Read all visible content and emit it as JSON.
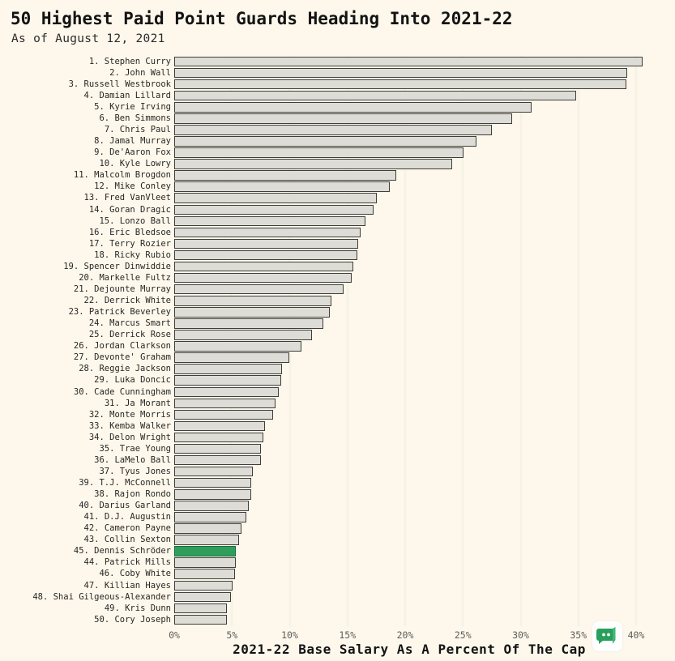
{
  "header": {
    "title": "50 Highest Paid Point Guards Heading Into 2021-22",
    "subtitle": "As of August 12, 2021"
  },
  "watermark": {
    "icon": "chat-bubble-icon",
    "bubble_color": "#28a05c",
    "fold_color": "#45b477",
    "background": "#ffffff"
  },
  "style": {
    "background": "#fdf8eb",
    "bar_fill": "#dddcd7",
    "bar_border": "#3f3e39",
    "highlight_fill": "#2f9e5b",
    "highlight_border": "#1b6e3d",
    "gridline_color": "#f5f2e6"
  },
  "chart_data": {
    "type": "bar",
    "orientation": "horizontal",
    "title": "50 Highest Paid Point Guards Heading Into 2021-22",
    "subtitle": "As of August 12, 2021",
    "xlabel": "2021-22 Base Salary As A Percent Of The Cap",
    "x_ticks": [
      "0%",
      "5%",
      "10%",
      "15%",
      "20%",
      "25%",
      "30%",
      "35%",
      "40%"
    ],
    "x_tick_values": [
      0,
      5,
      10,
      15,
      20,
      25,
      30,
      35,
      40
    ],
    "xlim": [
      0,
      43.3
    ],
    "grid": true,
    "legend": false,
    "value_unit": "percent_of_cap",
    "bars": [
      {
        "label": "1. Stephen Curry",
        "value": 40.4,
        "highlight": false
      },
      {
        "label": "2. John Wall",
        "value": 39.1,
        "highlight": false
      },
      {
        "label": "3. Russell Westbrook",
        "value": 39.0,
        "highlight": false
      },
      {
        "label": "4. Damian Lillard",
        "value": 34.7,
        "highlight": false
      },
      {
        "label": "5. Kyrie Irving",
        "value": 30.8,
        "highlight": false
      },
      {
        "label": "6. Ben Simmons",
        "value": 29.1,
        "highlight": false
      },
      {
        "label": "7. Chris Paul",
        "value": 27.4,
        "highlight": false
      },
      {
        "label": "8. Jamal Murray",
        "value": 26.0,
        "highlight": false
      },
      {
        "label": "9. De'Aaron Fox",
        "value": 24.9,
        "highlight": false
      },
      {
        "label": "10. Kyle Lowry",
        "value": 23.9,
        "highlight": false
      },
      {
        "label": "11. Malcolm Brogdon",
        "value": 19.1,
        "highlight": false
      },
      {
        "label": "12. Mike Conley",
        "value": 18.5,
        "highlight": false
      },
      {
        "label": "13. Fred VanVleet",
        "value": 17.4,
        "highlight": false
      },
      {
        "label": "14. Goran Dragic",
        "value": 17.1,
        "highlight": false
      },
      {
        "label": "15. Lonzo Ball",
        "value": 16.4,
        "highlight": false
      },
      {
        "label": "16. Eric Bledsoe",
        "value": 16.0,
        "highlight": false
      },
      {
        "label": "17. Terry Rozier",
        "value": 15.8,
        "highlight": false
      },
      {
        "label": "18. Ricky Rubio",
        "value": 15.7,
        "highlight": false
      },
      {
        "label": "19. Spencer Dinwiddie",
        "value": 15.4,
        "highlight": false
      },
      {
        "label": "20. Markelle Fultz",
        "value": 15.2,
        "highlight": false
      },
      {
        "label": "21. Dejounte Murray",
        "value": 14.5,
        "highlight": false
      },
      {
        "label": "22. Derrick White",
        "value": 13.5,
        "highlight": false
      },
      {
        "label": "23. Patrick Beverley",
        "value": 13.3,
        "highlight": false
      },
      {
        "label": "24. Marcus Smart",
        "value": 12.8,
        "highlight": false
      },
      {
        "label": "25. Derrick Rose",
        "value": 11.8,
        "highlight": false
      },
      {
        "label": "26. Jordan Clarkson",
        "value": 10.9,
        "highlight": false
      },
      {
        "label": "27. Devonte' Graham",
        "value": 9.8,
        "highlight": false
      },
      {
        "label": "28. Reggie Jackson",
        "value": 9.2,
        "highlight": false
      },
      {
        "label": "29. Luka Doncic",
        "value": 9.1,
        "highlight": false
      },
      {
        "label": "30. Cade Cunningham",
        "value": 8.9,
        "highlight": false
      },
      {
        "label": "31. Ja Morant",
        "value": 8.6,
        "highlight": false
      },
      {
        "label": "32. Monte Morris",
        "value": 8.4,
        "highlight": false
      },
      {
        "label": "33. Kemba Walker",
        "value": 7.7,
        "highlight": false
      },
      {
        "label": "34. Delon Wright",
        "value": 7.6,
        "highlight": false
      },
      {
        "label": "35. Trae Young",
        "value": 7.4,
        "highlight": false
      },
      {
        "label": "36. LaMelo Ball",
        "value": 7.4,
        "highlight": false
      },
      {
        "label": "37. Tyus Jones",
        "value": 6.7,
        "highlight": false
      },
      {
        "label": "39. T.J. McConnell",
        "value": 6.5,
        "highlight": false
      },
      {
        "label": "38. Rajon Rondo",
        "value": 6.5,
        "highlight": false
      },
      {
        "label": "40. Darius Garland",
        "value": 6.3,
        "highlight": false
      },
      {
        "label": "41. D.J. Augustin",
        "value": 6.1,
        "highlight": false
      },
      {
        "label": "42. Cameron Payne",
        "value": 5.7,
        "highlight": false
      },
      {
        "label": "43. Collin Sexton",
        "value": 5.5,
        "highlight": false
      },
      {
        "label": "45. Dennis Schröder",
        "value": 5.2,
        "highlight": true
      },
      {
        "label": "44. Patrick Mills",
        "value": 5.2,
        "highlight": false
      },
      {
        "label": "46. Coby White",
        "value": 5.1,
        "highlight": false
      },
      {
        "label": "47. Killian Hayes",
        "value": 4.9,
        "highlight": false
      },
      {
        "label": "48. Shai Gilgeous-Alexander",
        "value": 4.8,
        "highlight": false
      },
      {
        "label": "49. Kris Dunn",
        "value": 4.4,
        "highlight": false
      },
      {
        "label": "50. Cory Joseph",
        "value": 4.4,
        "highlight": false
      }
    ]
  }
}
